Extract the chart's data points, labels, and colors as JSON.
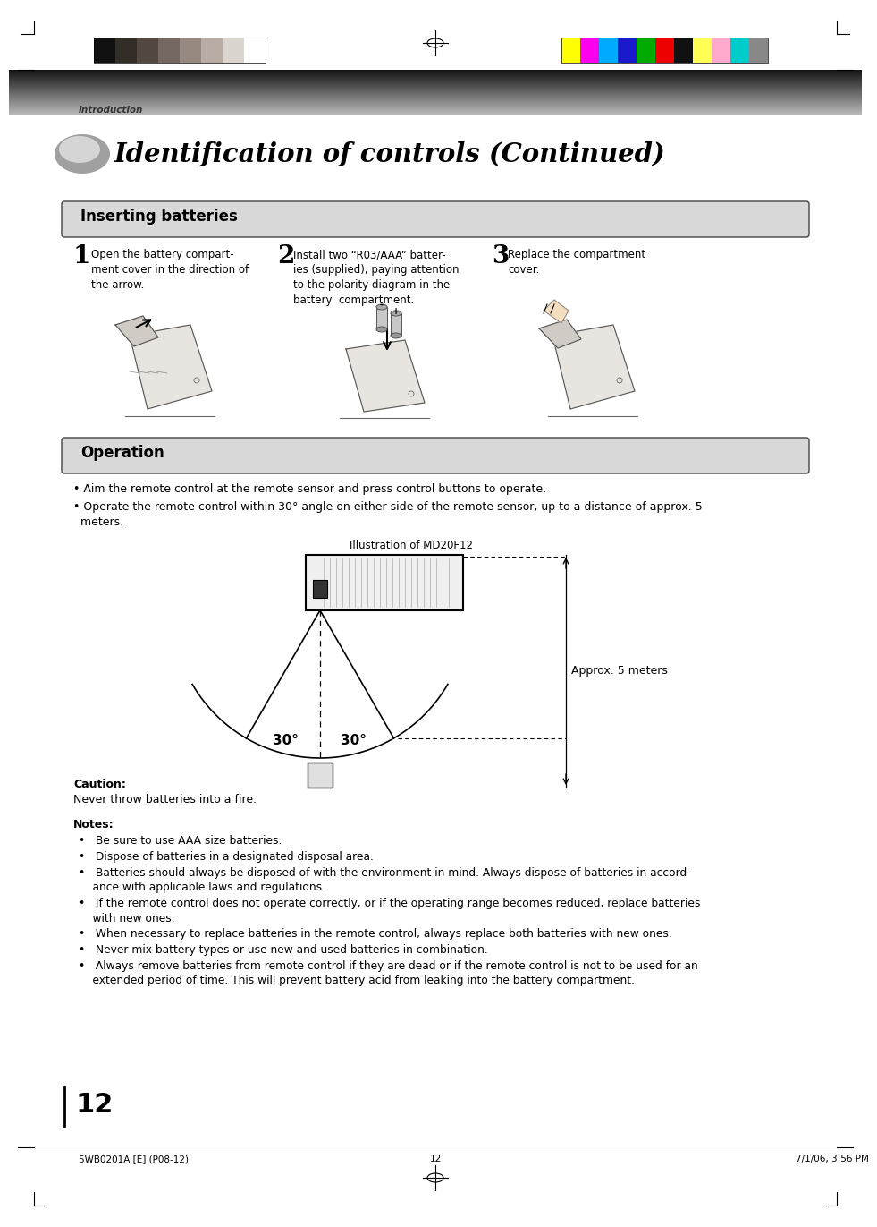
{
  "title": "Identification of controls (Continued)",
  "section1_title": "Inserting batteries",
  "section2_title": "Operation",
  "step1_num": "1",
  "step1_text": "Open the battery compart-\nment cover in the direction of\nthe arrow.",
  "step2_num": "2",
  "step2_text": "Install two “R03/AAA” batter-\nies (supplied), paying attention\nto the polarity diagram in the\nbattery  compartment.",
  "step3_num": "3",
  "step3_text": "Replace the compartment\ncover.",
  "op_bullet1": "• Aim the remote control at the remote sensor and press control buttons to operate.",
  "op_bullet2": "• Operate the remote control within 30° angle on either side of the remote sensor, up to a distance of approx. 5\n  meters.",
  "illustration_label": "Illustration of MD20F12",
  "approx_label": "Approx. 5 meters",
  "angle_label1": "30°",
  "angle_label2": "30°",
  "caution_title": "Caution:",
  "caution_text": "Never throw batteries into a fire.",
  "notes_title": "Notes:",
  "note1": "•   Be sure to use AAA size batteries.",
  "note2": "•   Dispose of batteries in a designated disposal area.",
  "note3": "•   Batteries should always be disposed of with the environment in mind. Always dispose of batteries in accord-\n    ance with applicable laws and regulations.",
  "note4": "•   If the remote control does not operate correctly, or if the operating range becomes reduced, replace batteries\n    with new ones.",
  "note5": "•   When necessary to replace batteries in the remote control, always replace both batteries with new ones.",
  "note6": "•   Never mix battery types or use new and used batteries in combination.",
  "note7": "•   Always remove batteries from remote control if they are dead or if the remote control is not to be used for an\n    extended period of time. This will prevent battery acid from leaking into the battery compartment.",
  "page_num": "12",
  "footer_left": "5WB0201A [E] (P08-12)",
  "footer_mid": "12",
  "footer_right": "7/1/06, 3:56 PM",
  "intro_label": "Introduction",
  "header_bar_colors_left": [
    "#111111",
    "#332d28",
    "#534840",
    "#756860",
    "#978880",
    "#b9aca4",
    "#dbd5d0",
    "#ffffff"
  ],
  "header_bar_colors_right": [
    "#ffff00",
    "#ff00ee",
    "#00aaff",
    "#1a1acc",
    "#00aa00",
    "#ee0000",
    "#111111",
    "#ffff55",
    "#ffaacc",
    "#00cccc",
    "#888888"
  ],
  "bg_color": "#ffffff",
  "section_box_fill": "#e0e0e0",
  "section_box_edge": "#444444"
}
